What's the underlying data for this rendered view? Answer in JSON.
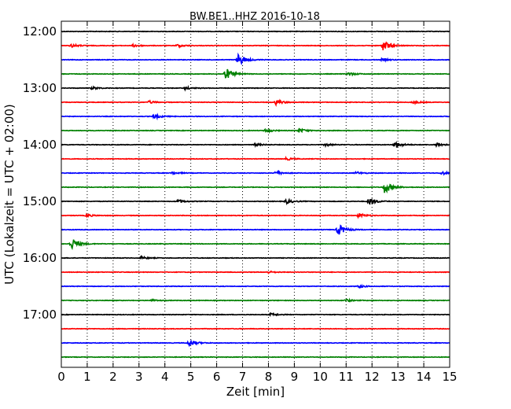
{
  "chart_data": {
    "type": "line",
    "title": "BW.BE1..HHZ 2016-10-18",
    "xlabel": "Zeit  [min]",
    "ylabel": "UTC (Lokalzeit = UTC + 02:00)",
    "xlim": [
      0,
      15
    ],
    "x_ticks": [
      "0",
      "1",
      "2",
      "3",
      "4",
      "5",
      "6",
      "7",
      "8",
      "9",
      "10",
      "11",
      "12",
      "13",
      "14",
      "15"
    ],
    "y_ticks": [
      "12:00",
      "13:00",
      "14:00",
      "15:00",
      "16:00",
      "17:00"
    ],
    "grid": "x-dotted",
    "colors": [
      "#000000",
      "#ff0000",
      "#0000ff",
      "#008000"
    ],
    "rows": [
      {
        "time": "12:00",
        "events": []
      },
      {
        "time": "12:15",
        "events": [
          {
            "x": 0.4,
            "amp": 0.25
          },
          {
            "x": 2.8,
            "amp": 0.2
          },
          {
            "x": 4.5,
            "amp": 0.25
          },
          {
            "x": 12.45,
            "amp": 0.9
          }
        ]
      },
      {
        "time": "12:30",
        "events": [
          {
            "x": 6.85,
            "amp": 0.9
          },
          {
            "x": 12.4,
            "amp": 0.2
          }
        ]
      },
      {
        "time": "12:45",
        "events": [
          {
            "x": 6.35,
            "amp": 0.95
          },
          {
            "x": 11.1,
            "amp": 0.25
          }
        ]
      },
      {
        "time": "13:00",
        "events": [
          {
            "x": 1.2,
            "amp": 0.2
          },
          {
            "x": 4.8,
            "amp": 0.2
          }
        ]
      },
      {
        "time": "13:15",
        "events": [
          {
            "x": 3.4,
            "amp": 0.2
          },
          {
            "x": 8.3,
            "amp": 0.4
          },
          {
            "x": 13.6,
            "amp": 0.2
          }
        ]
      },
      {
        "time": "13:30",
        "events": [
          {
            "x": 3.6,
            "amp": 0.35
          }
        ]
      },
      {
        "time": "13:45",
        "events": [
          {
            "x": 7.9,
            "amp": 0.25
          },
          {
            "x": 9.2,
            "amp": 0.3
          }
        ]
      },
      {
        "time": "14:00",
        "events": [
          {
            "x": 7.5,
            "amp": 0.2
          },
          {
            "x": 10.2,
            "amp": 0.2
          },
          {
            "x": 12.9,
            "amp": 0.5
          },
          {
            "x": 14.5,
            "amp": 0.35
          }
        ]
      },
      {
        "time": "14:15",
        "events": [
          {
            "x": 8.7,
            "amp": 0.2
          }
        ]
      },
      {
        "time": "14:30",
        "events": [
          {
            "x": 4.3,
            "amp": 0.2
          },
          {
            "x": 8.3,
            "amp": 0.3
          },
          {
            "x": 11.4,
            "amp": 0.2
          },
          {
            "x": 14.7,
            "amp": 0.25
          }
        ]
      },
      {
        "time": "14:45",
        "events": [
          {
            "x": 12.5,
            "amp": 1.0
          }
        ]
      },
      {
        "time": "15:00",
        "events": [
          {
            "x": 4.5,
            "amp": 0.3
          },
          {
            "x": 8.7,
            "amp": 0.35
          },
          {
            "x": 11.9,
            "amp": 0.6
          }
        ]
      },
      {
        "time": "15:15",
        "events": [
          {
            "x": 1.0,
            "amp": 0.2
          },
          {
            "x": 11.5,
            "amp": 0.35
          }
        ]
      },
      {
        "time": "15:30",
        "events": [
          {
            "x": 10.7,
            "amp": 0.95
          }
        ]
      },
      {
        "time": "15:45",
        "events": [
          {
            "x": 0.4,
            "amp": 1.0
          }
        ]
      },
      {
        "time": "16:00",
        "events": [
          {
            "x": 3.1,
            "amp": 0.2
          }
        ]
      },
      {
        "time": "16:15",
        "events": [
          {
            "x": 8.0,
            "amp": 0.15
          }
        ]
      },
      {
        "time": "16:30",
        "events": [
          {
            "x": 11.5,
            "amp": 0.2
          }
        ]
      },
      {
        "time": "16:45",
        "events": [
          {
            "x": 3.5,
            "amp": 0.15
          },
          {
            "x": 11.0,
            "amp": 0.2
          }
        ]
      },
      {
        "time": "17:00",
        "events": [
          {
            "x": 8.1,
            "amp": 0.2
          }
        ]
      },
      {
        "time": "17:15",
        "events": []
      },
      {
        "time": "17:30",
        "events": [
          {
            "x": 4.95,
            "amp": 0.55
          }
        ]
      },
      {
        "time": "17:45",
        "events": []
      }
    ]
  }
}
